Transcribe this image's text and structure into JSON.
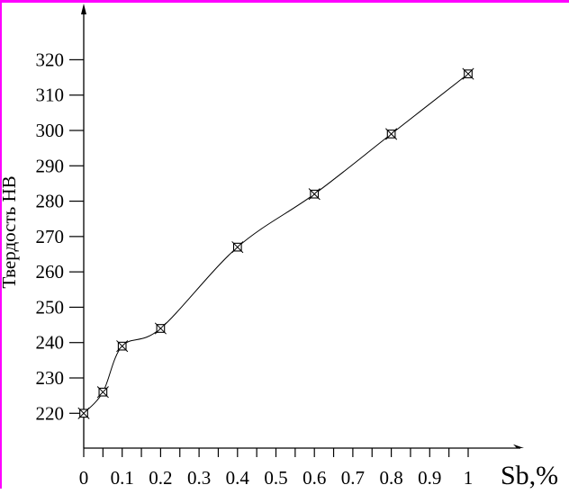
{
  "frame": {
    "border_color": "#ff00ff",
    "background_color": "#ffffff",
    "line_color": "#000000"
  },
  "y_axis": {
    "label": "Твердость НВ",
    "tick_values": [
      220,
      230,
      240,
      250,
      260,
      270,
      280,
      290,
      300,
      310,
      320
    ],
    "tick_labels": [
      "220",
      "230",
      "240",
      "250",
      "260",
      "270",
      "280",
      "290",
      "300",
      "310",
      "320"
    ]
  },
  "x_axis": {
    "label": "Sb,%",
    "tick_values": [
      0,
      0.1,
      0.2,
      0.3,
      0.4,
      0.5,
      0.6,
      0.7,
      0.8,
      0.9,
      1
    ],
    "tick_labels": [
      "0",
      "0.1",
      "0.2",
      "0.3",
      "0.4",
      "0.5",
      "0.6",
      "0.7",
      "0.8",
      "0.9",
      "1"
    ],
    "minor_step": 0.05
  },
  "chart_data": {
    "type": "line",
    "title": "",
    "xlabel": "Sb,%",
    "ylabel": "Твердость НВ",
    "x": [
      0,
      0.05,
      0.1,
      0.2,
      0.4,
      0.6,
      0.8,
      1
    ],
    "y": [
      220,
      226,
      239,
      244,
      267,
      282,
      299,
      316
    ],
    "xlim": [
      0,
      1.05
    ],
    "ylim": [
      213,
      330
    ],
    "marker": "crossed-square",
    "grid": false,
    "legend": "none"
  }
}
